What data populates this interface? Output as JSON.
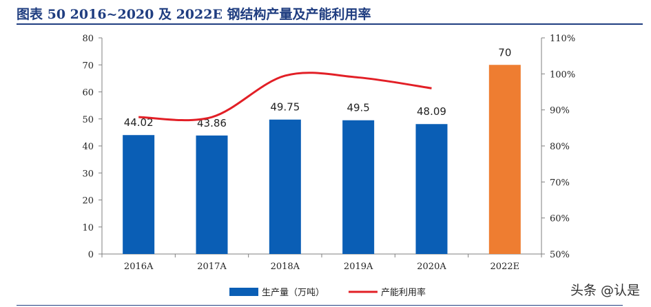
{
  "header": {
    "title": "图表 50 2016~2020 及 2022E 钢结构产量及产能利用率"
  },
  "colors": {
    "title": "#1f3d80",
    "bar": "#0a5eb5",
    "bar_highlight": "#ee7d31",
    "line": "#e21f26"
  },
  "watermark": "头条 @认是",
  "chart_data": {
    "type": "bar",
    "categories": [
      "2016A",
      "2017A",
      "2018A",
      "2019A",
      "2020A",
      "2022E"
    ],
    "series": [
      {
        "name": "生产量（万吨）",
        "type": "bar",
        "axis": "left",
        "values": [
          44.02,
          43.86,
          49.75,
          49.5,
          48.09,
          70
        ],
        "labels": [
          "44.02",
          "43.86",
          "49.75",
          "49.5",
          "48.09",
          "70"
        ],
        "highlight_index": 5
      },
      {
        "name": "产能利用率",
        "type": "line",
        "axis": "right",
        "values": [
          88,
          88,
          99.5,
          99,
          96,
          null
        ]
      }
    ],
    "ylim_left": [
      0,
      80
    ],
    "yticks_left": [
      "0",
      "10",
      "20",
      "30",
      "40",
      "50",
      "60",
      "70",
      "80"
    ],
    "ylim_right": [
      50,
      110
    ],
    "yticks_right": [
      "50%",
      "60%",
      "70%",
      "80%",
      "90%",
      "100%",
      "110%"
    ],
    "legend_position": "bottom",
    "grid": false
  }
}
